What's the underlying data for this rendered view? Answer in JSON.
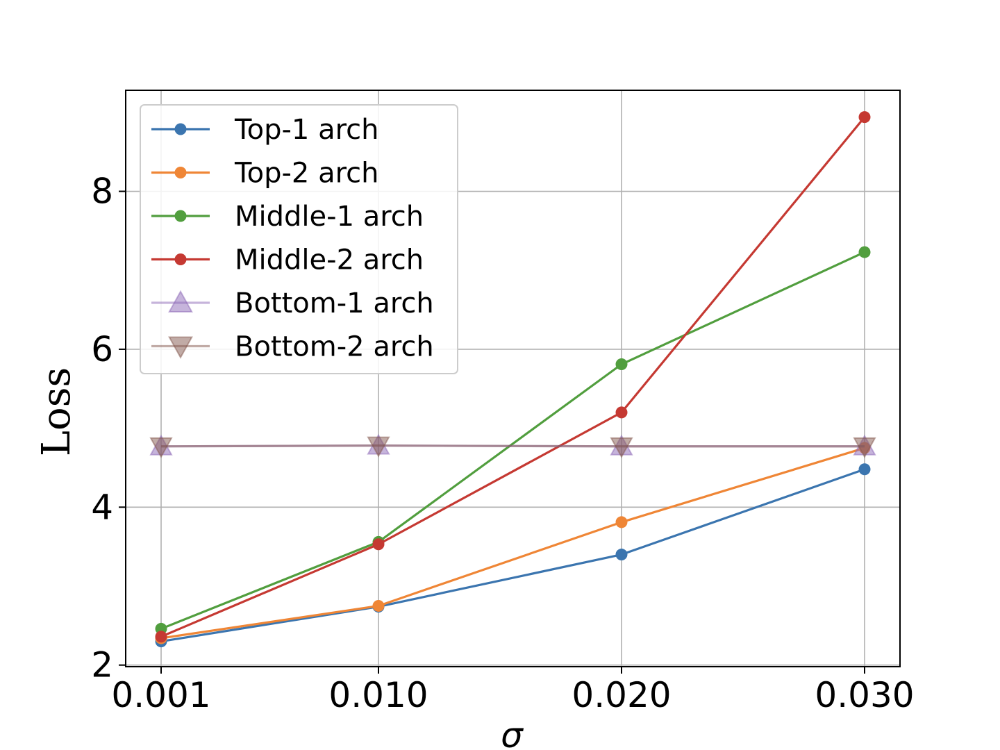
{
  "chart_data": {
    "type": "line",
    "xlabel": "σ",
    "ylabel": "Loss",
    "x": [
      "0.001",
      "0.010",
      "0.020",
      "0.030"
    ],
    "x_tick_labels": [
      "0.001",
      "0.010",
      "0.020",
      "0.030"
    ],
    "y_tick_labels": [
      "2",
      "4",
      "6",
      "8"
    ],
    "y_ticks": [
      2,
      4,
      6,
      8
    ],
    "ylim": [
      1.98,
      9.28
    ],
    "grid": true,
    "legend_position": "top-left",
    "series": [
      {
        "name": "Top-1 arch",
        "color": "#3b75af",
        "marker": "circle",
        "values": [
          2.3,
          2.74,
          3.4,
          4.48
        ]
      },
      {
        "name": "Top-2 arch",
        "color": "#ef8636",
        "marker": "circle",
        "values": [
          2.34,
          2.75,
          3.81,
          4.75
        ]
      },
      {
        "name": "Middle-1 arch",
        "color": "#519e3e",
        "marker": "circle",
        "values": [
          2.46,
          3.56,
          5.81,
          7.23
        ]
      },
      {
        "name": "Middle-2 arch",
        "color": "#c53932",
        "marker": "circle",
        "values": [
          2.36,
          3.53,
          5.2,
          8.94
        ]
      },
      {
        "name": "Bottom-1 arch",
        "color": "#8d69b8",
        "marker": "triangle-up",
        "alpha": 0.5,
        "values": [
          4.77,
          4.78,
          4.77,
          4.77
        ]
      },
      {
        "name": "Bottom-2 arch",
        "color": "#84584e",
        "marker": "triangle-down",
        "alpha": 0.5,
        "values": [
          4.77,
          4.78,
          4.77,
          4.77
        ]
      }
    ]
  }
}
